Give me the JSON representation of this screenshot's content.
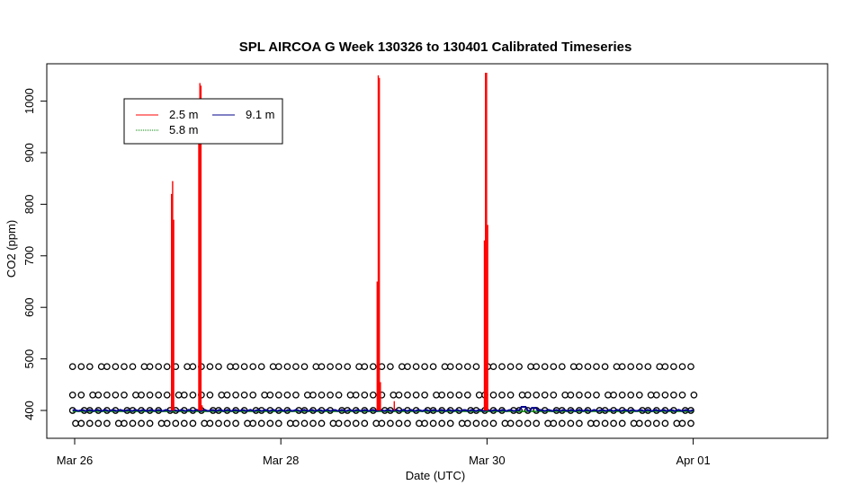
{
  "chart_data": {
    "type": "line",
    "title": "SPL AIRCOA G  Week 130326 to 130401  Calibrated Timeseries",
    "xlabel": "Date (UTC)",
    "ylabel": "CO2 (ppm)",
    "x_ticks": [
      "Mar 26",
      "Mar 28",
      "Mar 30",
      "Apr 01"
    ],
    "x_tick_days": [
      0,
      2,
      4,
      6
    ],
    "xlim_days": [
      -0.23,
      7.5
    ],
    "ylim": [
      350,
      1075
    ],
    "y_ticks": [
      400,
      500,
      600,
      700,
      800,
      900,
      1000
    ],
    "grid": false,
    "legend_position": "top-left",
    "legend": [
      {
        "name": "2.5 m",
        "color": "#ff0000"
      },
      {
        "name": "5.8 m",
        "color": "#008000"
      },
      {
        "name": "9.1 m",
        "color": "#00008b"
      }
    ],
    "series": [
      {
        "name": "2.5 m",
        "color": "#ff0000",
        "spikes": [
          {
            "day": 0.95,
            "values": [
              820,
              845,
              770
            ]
          },
          {
            "day": 1.22,
            "values": [
              920,
              1035,
              1030,
              410
            ]
          },
          {
            "day": 2.95,
            "values": [
              650,
              1050,
              1045,
              455
            ]
          },
          {
            "day": 3.1,
            "values": [
              418
            ]
          },
          {
            "day": 3.99,
            "values": [
              730,
              1055,
              1055,
              760
            ]
          }
        ]
      },
      {
        "name": "5.8 m",
        "color": "#008000",
        "baseline": 400
      },
      {
        "name": "9.1 m",
        "color": "#00008b",
        "baseline": 400,
        "wiggles": [
          {
            "day": 4.35,
            "value": 407
          },
          {
            "day": 4.45,
            "value": 405
          }
        ]
      }
    ],
    "reference_points": {
      "levels": [
        375,
        400,
        430,
        485
      ],
      "start_day": -0.02,
      "end_day": 6.0,
      "interval_day": 0.0833
    }
  }
}
